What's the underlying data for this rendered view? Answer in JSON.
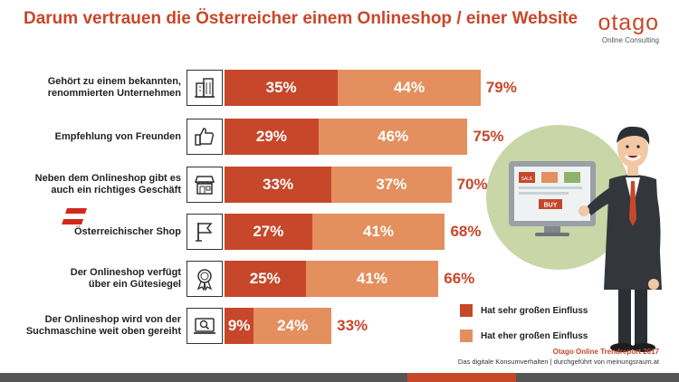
{
  "header": {
    "title": "Darum vertrauen die Österreicher einem Onlineshop / einer Website",
    "logo_word": "otago",
    "logo_sub": "Online Consulting"
  },
  "chart_data": {
    "type": "bar",
    "orientation": "horizontal",
    "stacked": true,
    "title": "Darum vertrauen die Österreicher einem Onlineshop / einer Website",
    "categories": [
      "Gehört zu einem bekannten, renommierten Unternehmen",
      "Empfehlung von Freunden",
      "Neben dem Onlineshop gibt es auch ein richtiges Geschäft",
      "Österreichischer Shop",
      "Der Onlineshop verfügt über ein Gütesiegel",
      "Der Onlineshop wird von der Suchmaschine weit oben gereiht"
    ],
    "category_lines": [
      [
        "Gehört zu einem bekannten,",
        "renommierten Unternehmen"
      ],
      [
        "Empfehlung von Freunden"
      ],
      [
        "Neben dem Onlineshop gibt es",
        "auch ein richtiges Geschäft"
      ],
      [
        "Österreichischer Shop"
      ],
      [
        "Der Onlineshop verfügt",
        "über ein Gütesiegel"
      ],
      [
        "Der Onlineshop wird von der",
        "Suchmaschine weit oben gereiht"
      ]
    ],
    "icons": [
      "building-icon",
      "thumbs-up-icon",
      "store-icon",
      "flag-icon",
      "seal-icon",
      "search-screen-icon"
    ],
    "series": [
      {
        "name": "Hat sehr großen Einfluss",
        "values": [
          35,
          29,
          33,
          27,
          25,
          9
        ],
        "color": "#c7472a"
      },
      {
        "name": "Hat eher großen Einfluss",
        "values": [
          44,
          46,
          37,
          41,
          41,
          24
        ],
        "color": "#e48f5e"
      }
    ],
    "totals": [
      79,
      75,
      70,
      68,
      66,
      33
    ],
    "value_suffix": "%",
    "legend_position": "bottom-right",
    "grid": false
  },
  "legend": {
    "items": [
      {
        "label": "Hat sehr großen Einfluss",
        "color": "#c7472a"
      },
      {
        "label": "Hat eher großen Einfluss",
        "color": "#e48f5e"
      }
    ]
  },
  "footer": {
    "title": "Otago Online Trendreport 2017",
    "subtitle": "Das digitale Konsumverhalten | durchgeführt von meinungsraum.at"
  },
  "illustration": {
    "badge_sale": "SALE",
    "badge_buy": "BUY"
  },
  "colors": {
    "accent": "#c7472a",
    "accent_light": "#e48f5e",
    "circle": "#c8d6a8"
  }
}
